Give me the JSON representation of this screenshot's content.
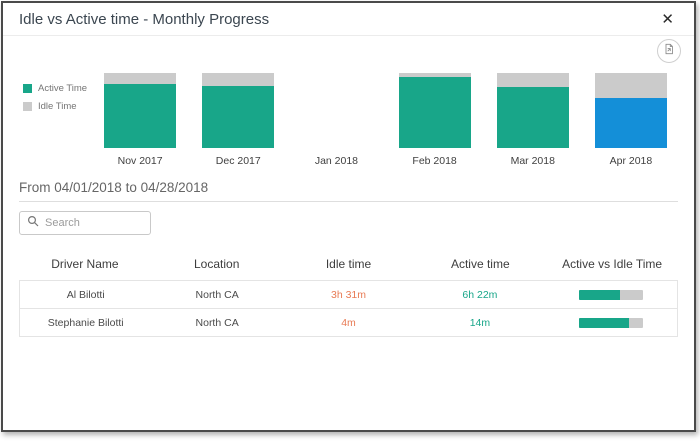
{
  "modal": {
    "title": "Idle vs Active time - Monthly Progress",
    "close_glyph": "✕"
  },
  "colors": {
    "active": "#18A689",
    "idle": "#CBCBCB",
    "selected": "#148FD8",
    "idle_text": "#E87B55",
    "active_text": "#18A689"
  },
  "legend": {
    "items": [
      {
        "label": "Active Time",
        "color": "#18A689"
      },
      {
        "label": "Idle Time",
        "color": "#CBCBCB"
      }
    ]
  },
  "chart_data": {
    "type": "bar",
    "stacked": true,
    "categories": [
      "Nov 2017",
      "Dec 2017",
      "Jan 2018",
      "Feb 2018",
      "Mar 2018",
      "Apr 2018"
    ],
    "series": [
      {
        "name": "Active Time",
        "values": [
          85,
          83,
          0,
          95,
          81,
          67
        ]
      },
      {
        "name": "Idle Time",
        "values": [
          15,
          17,
          0,
          5,
          19,
          33
        ]
      }
    ],
    "highlighted_category": "Apr 2018",
    "legend_position": "left",
    "ylim": [
      0,
      100
    ],
    "title": "Idle vs Active time - Monthly Progress"
  },
  "period": {
    "label": "From 04/01/2018 to 04/28/2018"
  },
  "search": {
    "placeholder": "Search"
  },
  "table": {
    "columns": [
      "Driver Name",
      "Location",
      "Idle time",
      "Active time",
      "Active vs Idle Time"
    ],
    "rows": [
      {
        "driver": "Al Bilotti",
        "location": "North CA",
        "idle": "3h 31m",
        "active": "6h 22m",
        "active_pct": 64
      },
      {
        "driver": "Stephanie Bilotti",
        "location": "North CA",
        "idle": "4m",
        "active": "14m",
        "active_pct": 78
      }
    ]
  }
}
